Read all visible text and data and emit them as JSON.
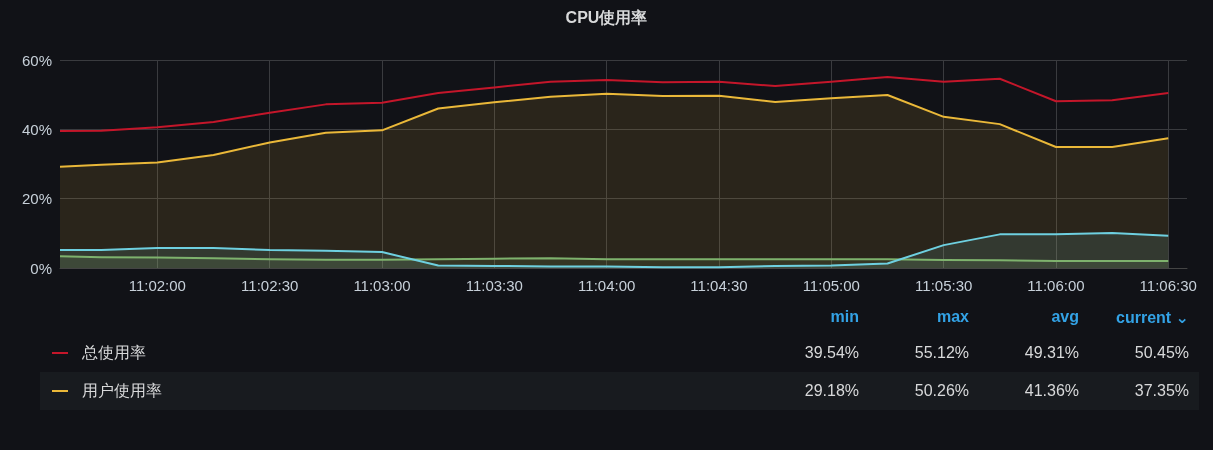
{
  "chart_data": {
    "type": "area",
    "title": "CPU使用率",
    "x": [
      11.02611,
      11.02917,
      11.03333,
      11.0375,
      11.04167,
      11.04583,
      11.05,
      11.05417,
      11.05833,
      11.0625,
      11.06667,
      11.07083,
      11.075,
      11.07917,
      11.08333,
      11.0875,
      11.09167,
      11.09583,
      11.1,
      11.10417,
      11.10833
    ],
    "series": [
      {
        "name": "总使用率",
        "type": "line",
        "color": "#c4162a",
        "values": [
          39.5,
          39.6,
          40.6,
          42.1,
          44.8,
          47.2,
          47.7,
          50.5,
          52.1,
          53.7,
          54.2,
          53.6,
          53.7,
          52.5,
          53.7,
          55.1,
          53.7,
          54.6,
          48.1,
          48.4,
          50.5
        ]
      },
      {
        "name": "用户使用率",
        "color": "#eab839",
        "values": [
          29.2,
          29.8,
          30.4,
          32.6,
          36.2,
          39.0,
          39.7,
          46.0,
          47.8,
          49.4,
          50.3,
          49.6,
          49.7,
          47.9,
          49.0,
          49.9,
          43.6,
          41.5,
          34.9,
          34.9,
          37.4
        ]
      },
      {
        "color": "#6ed0e0",
        "values": [
          5.2,
          5.2,
          5.8,
          5.8,
          5.2,
          5.0,
          4.6,
          0.7,
          0.6,
          0.4,
          0.4,
          0.2,
          0.2,
          0.6,
          0.7,
          1.3,
          6.6,
          9.7,
          9.7,
          10.1,
          9.3
        ]
      },
      {
        "color": "#7eb26d",
        "values": [
          3.4,
          3.1,
          3.0,
          2.8,
          2.5,
          2.4,
          2.4,
          2.5,
          2.7,
          2.8,
          2.5,
          2.5,
          2.5,
          2.5,
          2.5,
          2.5,
          2.3,
          2.2,
          2.0,
          2.0,
          2.0
        ]
      }
    ],
    "xlim": [
      11.02611,
      11.10972
    ],
    "xticks": [
      {
        "value": 11.03333,
        "label": "11:02:00"
      },
      {
        "value": 11.04167,
        "label": "11:02:30"
      },
      {
        "value": 11.05,
        "label": "11:03:00"
      },
      {
        "value": 11.05833,
        "label": "11:03:30"
      },
      {
        "value": 11.06667,
        "label": "11:04:00"
      },
      {
        "value": 11.075,
        "label": "11:04:30"
      },
      {
        "value": 11.08333,
        "label": "11:05:00"
      },
      {
        "value": 11.09167,
        "label": "11:05:30"
      },
      {
        "value": 11.1,
        "label": "11:06:00"
      },
      {
        "value": 11.10833,
        "label": "11:06:30"
      }
    ],
    "ylim": [
      0,
      60
    ],
    "yticks": [
      {
        "value": 0,
        "label": "0%"
      },
      {
        "value": 20,
        "label": "20%"
      },
      {
        "value": 40,
        "label": "40%"
      },
      {
        "value": 60,
        "label": "60%"
      }
    ],
    "grid": true,
    "legend": "bottom",
    "marker": "none",
    "annotations": [
      "min",
      "max",
      "avg",
      "current ⌄",
      "39.54%",
      "55.12%",
      "49.31%",
      "50.45%",
      "29.18%",
      "50.26%",
      "41.36%",
      "37.35%"
    ]
  }
}
